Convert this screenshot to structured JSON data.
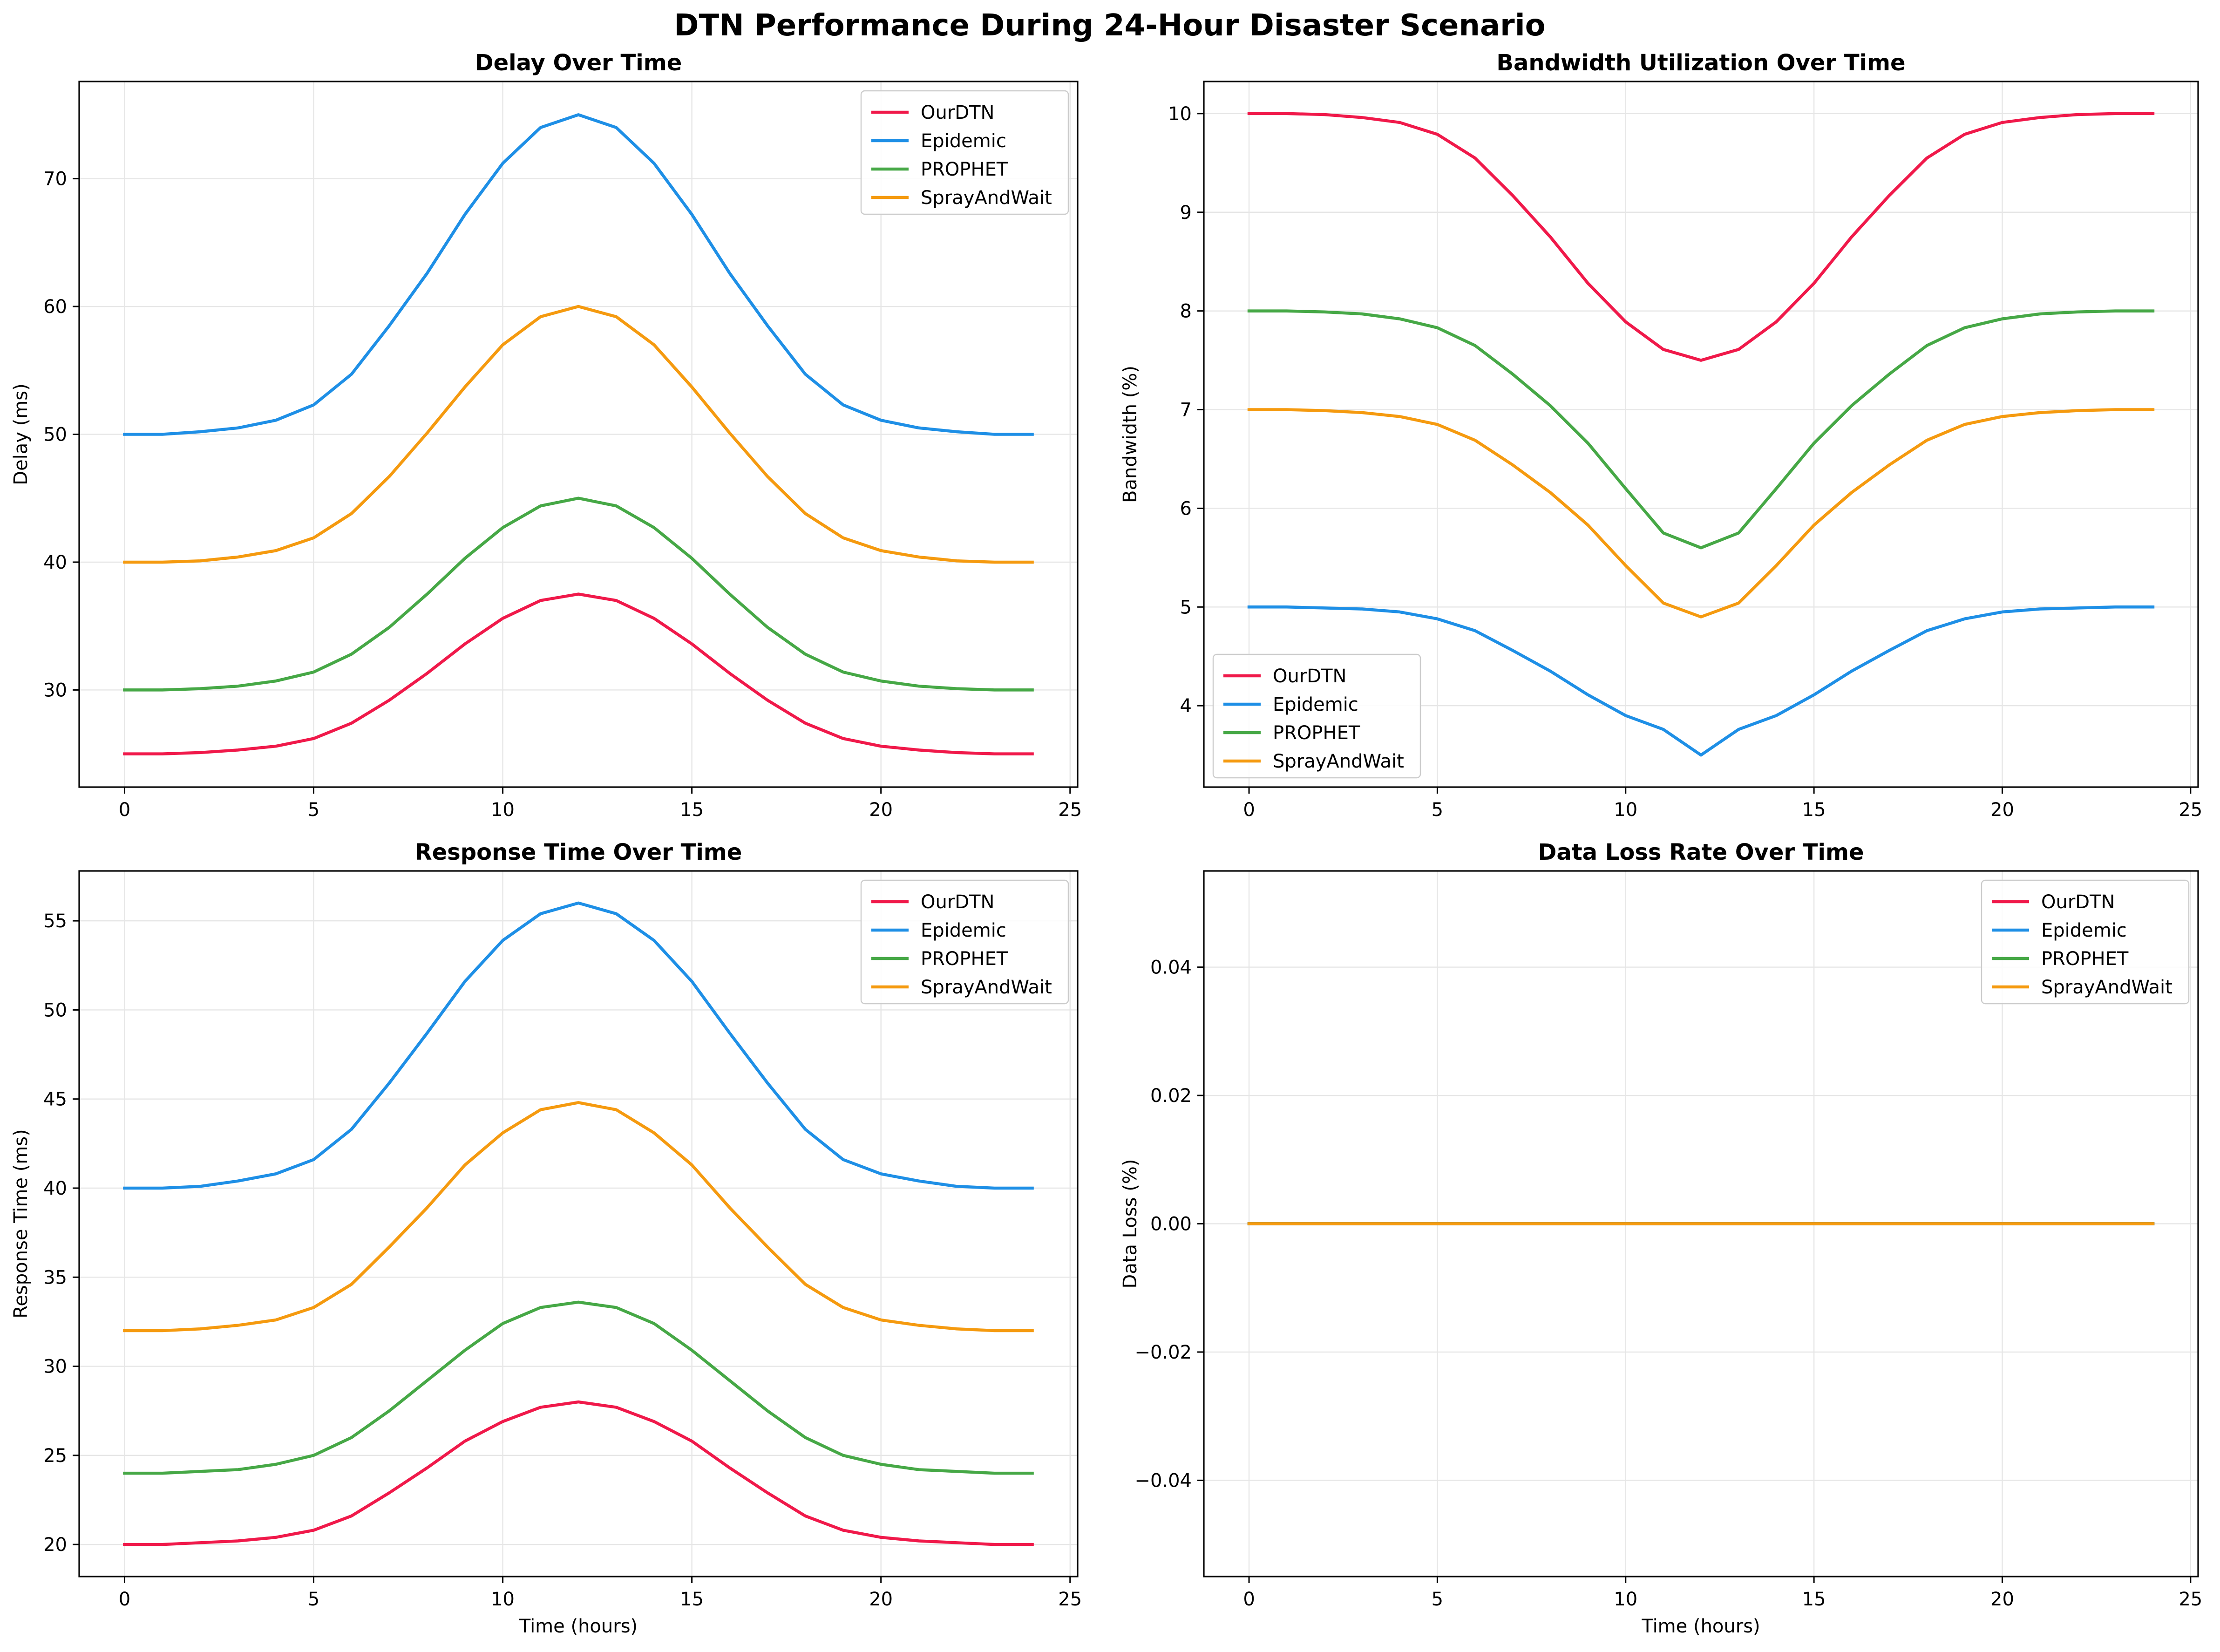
{
  "figure": {
    "suptitle": "DTN Performance During 24-Hour Disaster Scenario"
  },
  "colors": {
    "OurDTN": "#f0194a",
    "Epidemic": "#1e8fe6",
    "PROPHET": "#46a846",
    "SprayAndWait": "#f59a0f"
  },
  "chart_data": [
    {
      "type": "line",
      "title": "Delay Over Time",
      "xlabel": "",
      "ylabel": "Delay (ms)",
      "xlim": [
        -1.2,
        25.2
      ],
      "ylim": [
        22.4,
        77.6
      ],
      "xticks": [
        0,
        5,
        10,
        15,
        20,
        25
      ],
      "yticks": [
        30,
        40,
        50,
        60,
        70
      ],
      "grid": true,
      "legend": "top-right",
      "x": [
        0,
        1,
        2,
        3,
        4,
        5,
        6,
        7,
        8,
        9,
        10,
        11,
        12,
        13,
        14,
        15,
        16,
        17,
        18,
        19,
        20,
        21,
        22,
        23,
        24
      ],
      "series": [
        {
          "name": "OurDTN",
          "values": [
            25.0,
            25.0,
            25.1,
            25.3,
            25.6,
            26.2,
            27.4,
            29.2,
            31.3,
            33.6,
            35.6,
            37.0,
            37.5,
            37.0,
            35.6,
            33.6,
            31.3,
            29.2,
            27.4,
            26.2,
            25.6,
            25.3,
            25.1,
            25.0,
            25.0
          ]
        },
        {
          "name": "Epidemic",
          "values": [
            50.0,
            50.0,
            50.2,
            50.5,
            51.1,
            52.3,
            54.7,
            58.5,
            62.6,
            67.2,
            71.2,
            74.0,
            75.0,
            74.0,
            71.2,
            67.2,
            62.6,
            58.5,
            54.7,
            52.3,
            51.1,
            50.5,
            50.2,
            50.0,
            50.0
          ]
        },
        {
          "name": "PROPHET",
          "values": [
            30.0,
            30.0,
            30.1,
            30.3,
            30.7,
            31.4,
            32.8,
            34.9,
            37.5,
            40.3,
            42.7,
            44.4,
            45.0,
            44.4,
            42.7,
            40.3,
            37.5,
            34.9,
            32.8,
            31.4,
            30.7,
            30.3,
            30.1,
            30.0,
            30.0
          ]
        },
        {
          "name": "SprayAndWait",
          "values": [
            40.0,
            40.0,
            40.1,
            40.4,
            40.9,
            41.9,
            43.8,
            46.7,
            50.1,
            53.7,
            57.0,
            59.2,
            60.0,
            59.2,
            57.0,
            53.7,
            50.1,
            46.7,
            43.8,
            41.9,
            40.9,
            40.4,
            40.1,
            40.0,
            40.0
          ]
        }
      ]
    },
    {
      "type": "line",
      "title": "Bandwidth Utilization Over Time",
      "xlabel": "",
      "ylabel": "Bandwidth (%)",
      "xlim": [
        -1.2,
        25.2
      ],
      "ylim": [
        3.175,
        10.325
      ],
      "xticks": [
        0,
        5,
        10,
        15,
        20,
        25
      ],
      "yticks": [
        4,
        5,
        6,
        7,
        8,
        9,
        10
      ],
      "grid": true,
      "legend": "bottom-left",
      "x": [
        0,
        1,
        2,
        3,
        4,
        5,
        6,
        7,
        8,
        9,
        10,
        11,
        12,
        13,
        14,
        15,
        16,
        17,
        18,
        19,
        20,
        21,
        22,
        23,
        24
      ],
      "series": [
        {
          "name": "OurDTN",
          "values": [
            10.0,
            10.0,
            9.99,
            9.96,
            9.91,
            9.79,
            9.55,
            9.17,
            8.75,
            8.28,
            7.89,
            7.61,
            7.5,
            7.61,
            7.89,
            8.28,
            8.75,
            9.17,
            9.55,
            9.79,
            9.91,
            9.96,
            9.99,
            10.0,
            10.0
          ]
        },
        {
          "name": "Epidemic",
          "values": [
            5.0,
            5.0,
            4.99,
            4.98,
            4.95,
            4.88,
            4.76,
            4.56,
            4.35,
            4.11,
            3.9,
            3.76,
            3.5,
            3.76,
            3.9,
            4.11,
            4.35,
            4.56,
            4.76,
            4.88,
            4.95,
            4.98,
            4.99,
            5.0,
            5.0
          ]
        },
        {
          "name": "PROPHET",
          "values": [
            8.0,
            8.0,
            7.99,
            7.97,
            7.92,
            7.83,
            7.65,
            7.36,
            7.04,
            6.66,
            6.2,
            5.75,
            5.6,
            5.75,
            6.2,
            6.66,
            7.04,
            7.36,
            7.65,
            7.83,
            7.92,
            7.97,
            7.99,
            8.0,
            8.0
          ]
        },
        {
          "name": "SprayAndWait",
          "values": [
            7.0,
            7.0,
            6.99,
            6.97,
            6.93,
            6.85,
            6.69,
            6.44,
            6.16,
            5.83,
            5.42,
            5.04,
            4.9,
            5.04,
            5.42,
            5.83,
            6.16,
            6.44,
            6.69,
            6.85,
            6.93,
            6.97,
            6.99,
            7.0,
            7.0
          ]
        }
      ]
    },
    {
      "type": "line",
      "title": "Response Time Over Time",
      "xlabel": "Time (hours)",
      "ylabel": "Response Time (ms)",
      "xlim": [
        -1.2,
        25.2
      ],
      "ylim": [
        18.2,
        57.8
      ],
      "xticks": [
        0,
        5,
        10,
        15,
        20,
        25
      ],
      "yticks": [
        20,
        25,
        30,
        35,
        40,
        45,
        50,
        55
      ],
      "grid": true,
      "legend": "top-right",
      "x": [
        0,
        1,
        2,
        3,
        4,
        5,
        6,
        7,
        8,
        9,
        10,
        11,
        12,
        13,
        14,
        15,
        16,
        17,
        18,
        19,
        20,
        21,
        22,
        23,
        24
      ],
      "series": [
        {
          "name": "OurDTN",
          "values": [
            20.0,
            20.0,
            20.1,
            20.2,
            20.4,
            20.8,
            21.6,
            22.9,
            24.3,
            25.8,
            26.9,
            27.7,
            28.0,
            27.7,
            26.9,
            25.8,
            24.3,
            22.9,
            21.6,
            20.8,
            20.4,
            20.2,
            20.1,
            20.0,
            20.0
          ]
        },
        {
          "name": "Epidemic",
          "values": [
            40.0,
            40.0,
            40.1,
            40.4,
            40.8,
            41.6,
            43.3,
            45.9,
            48.7,
            51.6,
            53.9,
            55.4,
            56.0,
            55.4,
            53.9,
            51.6,
            48.7,
            45.9,
            43.3,
            41.6,
            40.8,
            40.4,
            40.1,
            40.0,
            40.0
          ]
        },
        {
          "name": "PROPHET",
          "values": [
            24.0,
            24.0,
            24.1,
            24.2,
            24.5,
            25.0,
            26.0,
            27.5,
            29.2,
            30.9,
            32.4,
            33.3,
            33.6,
            33.3,
            32.4,
            30.9,
            29.2,
            27.5,
            26.0,
            25.0,
            24.5,
            24.2,
            24.1,
            24.0,
            24.0
          ]
        },
        {
          "name": "SprayAndWait",
          "values": [
            32.0,
            32.0,
            32.1,
            32.3,
            32.6,
            33.3,
            34.6,
            36.7,
            38.9,
            41.3,
            43.1,
            44.4,
            44.8,
            44.4,
            43.1,
            41.3,
            38.9,
            36.7,
            34.6,
            33.3,
            32.6,
            32.3,
            32.1,
            32.0,
            32.0
          ]
        }
      ]
    },
    {
      "type": "line",
      "title": "Data Loss Rate Over Time",
      "xlabel": "Time (hours)",
      "ylabel": "Data Loss (%)",
      "xlim": [
        -1.2,
        25.2
      ],
      "ylim": [
        -0.055,
        0.055
      ],
      "xticks": [
        0,
        5,
        10,
        15,
        20,
        25
      ],
      "yticks": [
        -0.04,
        -0.02,
        0.0,
        0.02,
        0.04
      ],
      "ytick_labels": [
        "−0.04",
        "−0.02",
        "0.00",
        "0.02",
        "0.04"
      ],
      "grid": true,
      "legend": "top-right",
      "x": [
        0,
        24
      ],
      "series": [
        {
          "name": "OurDTN",
          "values": [
            0,
            0
          ]
        },
        {
          "name": "Epidemic",
          "values": [
            0,
            0
          ]
        },
        {
          "name": "PROPHET",
          "values": [
            0,
            0
          ]
        },
        {
          "name": "SprayAndWait",
          "values": [
            0,
            0
          ]
        }
      ]
    }
  ]
}
